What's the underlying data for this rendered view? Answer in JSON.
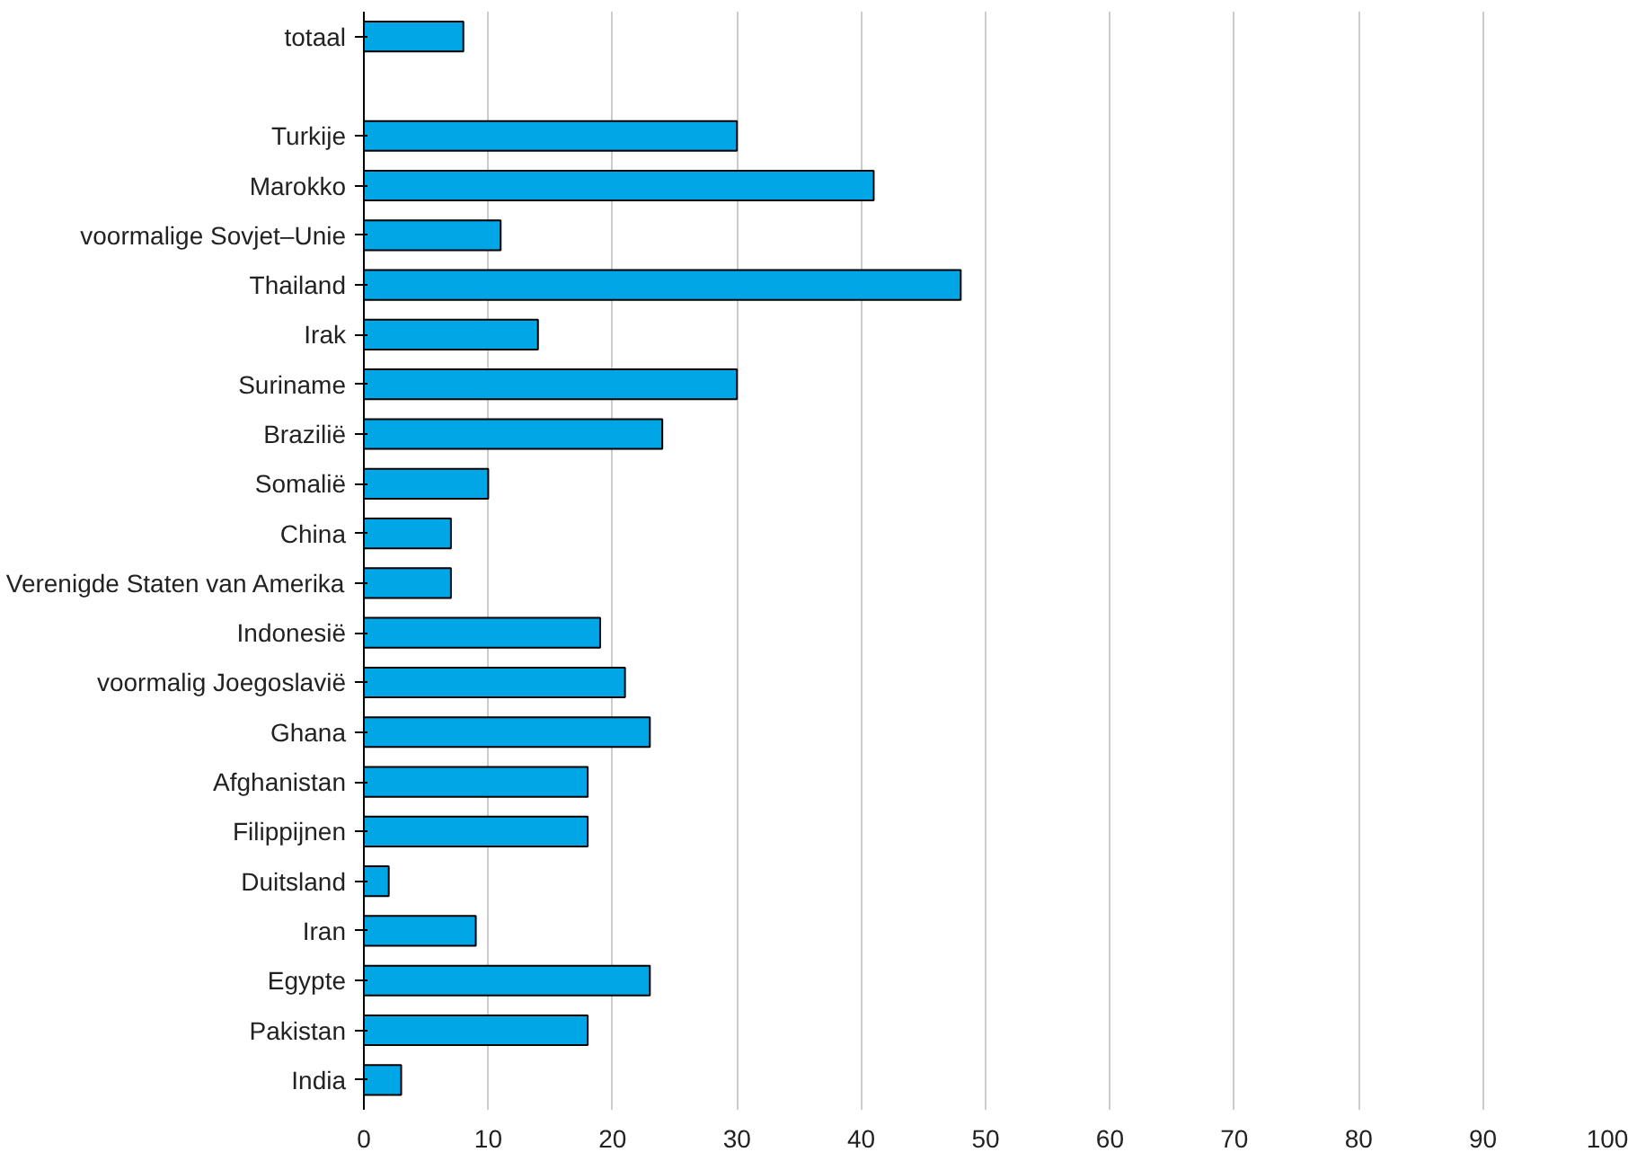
{
  "chart_data": {
    "type": "bar",
    "orientation": "horizontal",
    "categories": [
      "totaal",
      null,
      "Turkije",
      "Marokko",
      "voormalige Sovjet–Unie",
      "Thailand",
      "Irak",
      "Suriname",
      "Brazilië",
      "Somalië",
      "China",
      "Verenigde Staten van Amerika",
      "Indonesië",
      "voormalig Joegoslavië",
      "Ghana",
      "Afghanistan",
      "Filippijnen",
      "Duitsland",
      "Iran",
      "Egypte",
      "Pakistan",
      "India"
    ],
    "values": [
      8,
      null,
      30,
      41,
      11,
      48,
      14,
      30,
      24,
      10,
      7,
      7,
      19,
      21,
      23,
      18,
      18,
      2,
      9,
      23,
      18,
      3
    ],
    "color": "#00a6e6",
    "xlim": [
      0,
      100
    ],
    "xticks": [
      0,
      10,
      20,
      30,
      40,
      50,
      60,
      70,
      80,
      90,
      100
    ],
    "grid": "x"
  }
}
